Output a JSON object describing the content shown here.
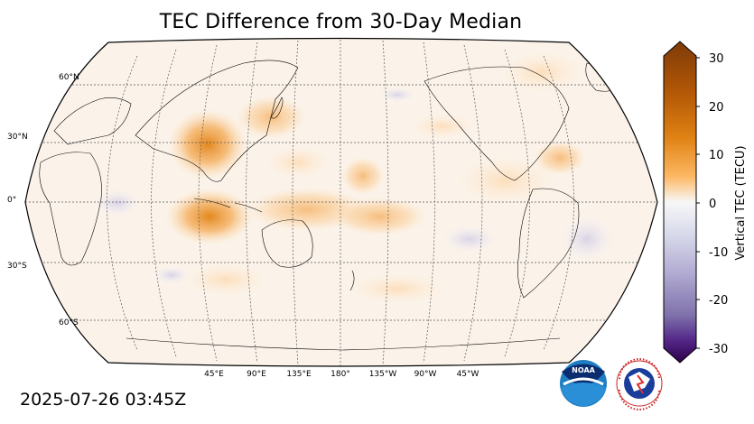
{
  "title": "TEC Difference from 30-Day Median",
  "timestamp": "2025-07-26 03:45Z",
  "colorbar": {
    "label": "Vertical TEC (TECU)",
    "ticks": [
      "30",
      "20",
      "10",
      "0",
      "-10",
      "-20",
      "-30"
    ],
    "range": [
      -30,
      30
    ],
    "colors": {
      "max": "#7f3b08",
      "high": "#e08214",
      "mid_high": "#fdb863",
      "neutral": "#f7f7f7",
      "mid_low": "#b2abd2",
      "low": "#542788",
      "min": "#2d004b"
    }
  },
  "map": {
    "projection": "Robinson (centered 180°)",
    "lat_labels": [
      "60°N",
      "30°N",
      "0°",
      "30°S",
      "60°S"
    ],
    "lon_labels": [
      "45°E",
      "90°E",
      "135°E",
      "180°",
      "135°W",
      "90°W",
      "45°W"
    ],
    "anomalies": [
      {
        "region": "Southeast Asia",
        "sign": "positive",
        "strength": "strong"
      },
      {
        "region": "Indonesia / Indian Ocean",
        "sign": "positive",
        "strength": "strong"
      },
      {
        "region": "Central Pacific equator",
        "sign": "positive",
        "strength": "moderate"
      },
      {
        "region": "Eastern Pacific",
        "sign": "positive",
        "strength": "moderate"
      },
      {
        "region": "South America",
        "sign": "negative",
        "strength": "weak"
      }
    ]
  },
  "logos": {
    "noaa": {
      "text": "NOAA"
    },
    "nws": {
      "text": "NATIONAL WEATHER SERVICE"
    }
  }
}
